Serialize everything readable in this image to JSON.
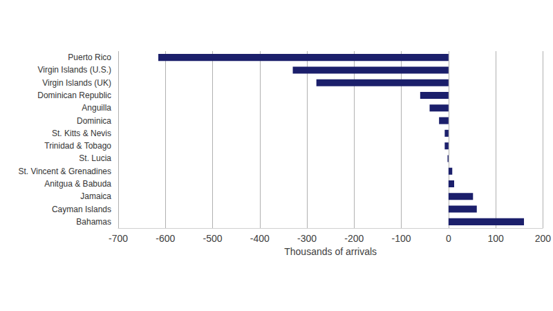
{
  "chart_data": {
    "type": "bar",
    "orientation": "horizontal",
    "categories": [
      "Puerto Rico",
      "Virgin Islands (U.S.)",
      "Virgin Islands (UK)",
      "Dominican Republic",
      "Anguilla",
      "Dominica",
      "St. Kitts & Nevis",
      "Trinidad & Tobago",
      "St. Lucia",
      "St. Vincent & Grenadines",
      "Anitgua & Babuda",
      "Jamaica",
      "Cayman Islands",
      "Bahamas"
    ],
    "values": [
      -615,
      -330,
      -280,
      -60,
      -40,
      -20,
      -8,
      -8,
      -2,
      8,
      12,
      52,
      60,
      160
    ],
    "color": "#1b1f6b",
    "xlabel": "Thousands of arrivals",
    "xlim": [
      -700,
      200
    ],
    "xticks": [
      -700,
      -600,
      -500,
      -400,
      -300,
      -200,
      -100,
      0,
      100,
      200
    ],
    "grid": true
  }
}
